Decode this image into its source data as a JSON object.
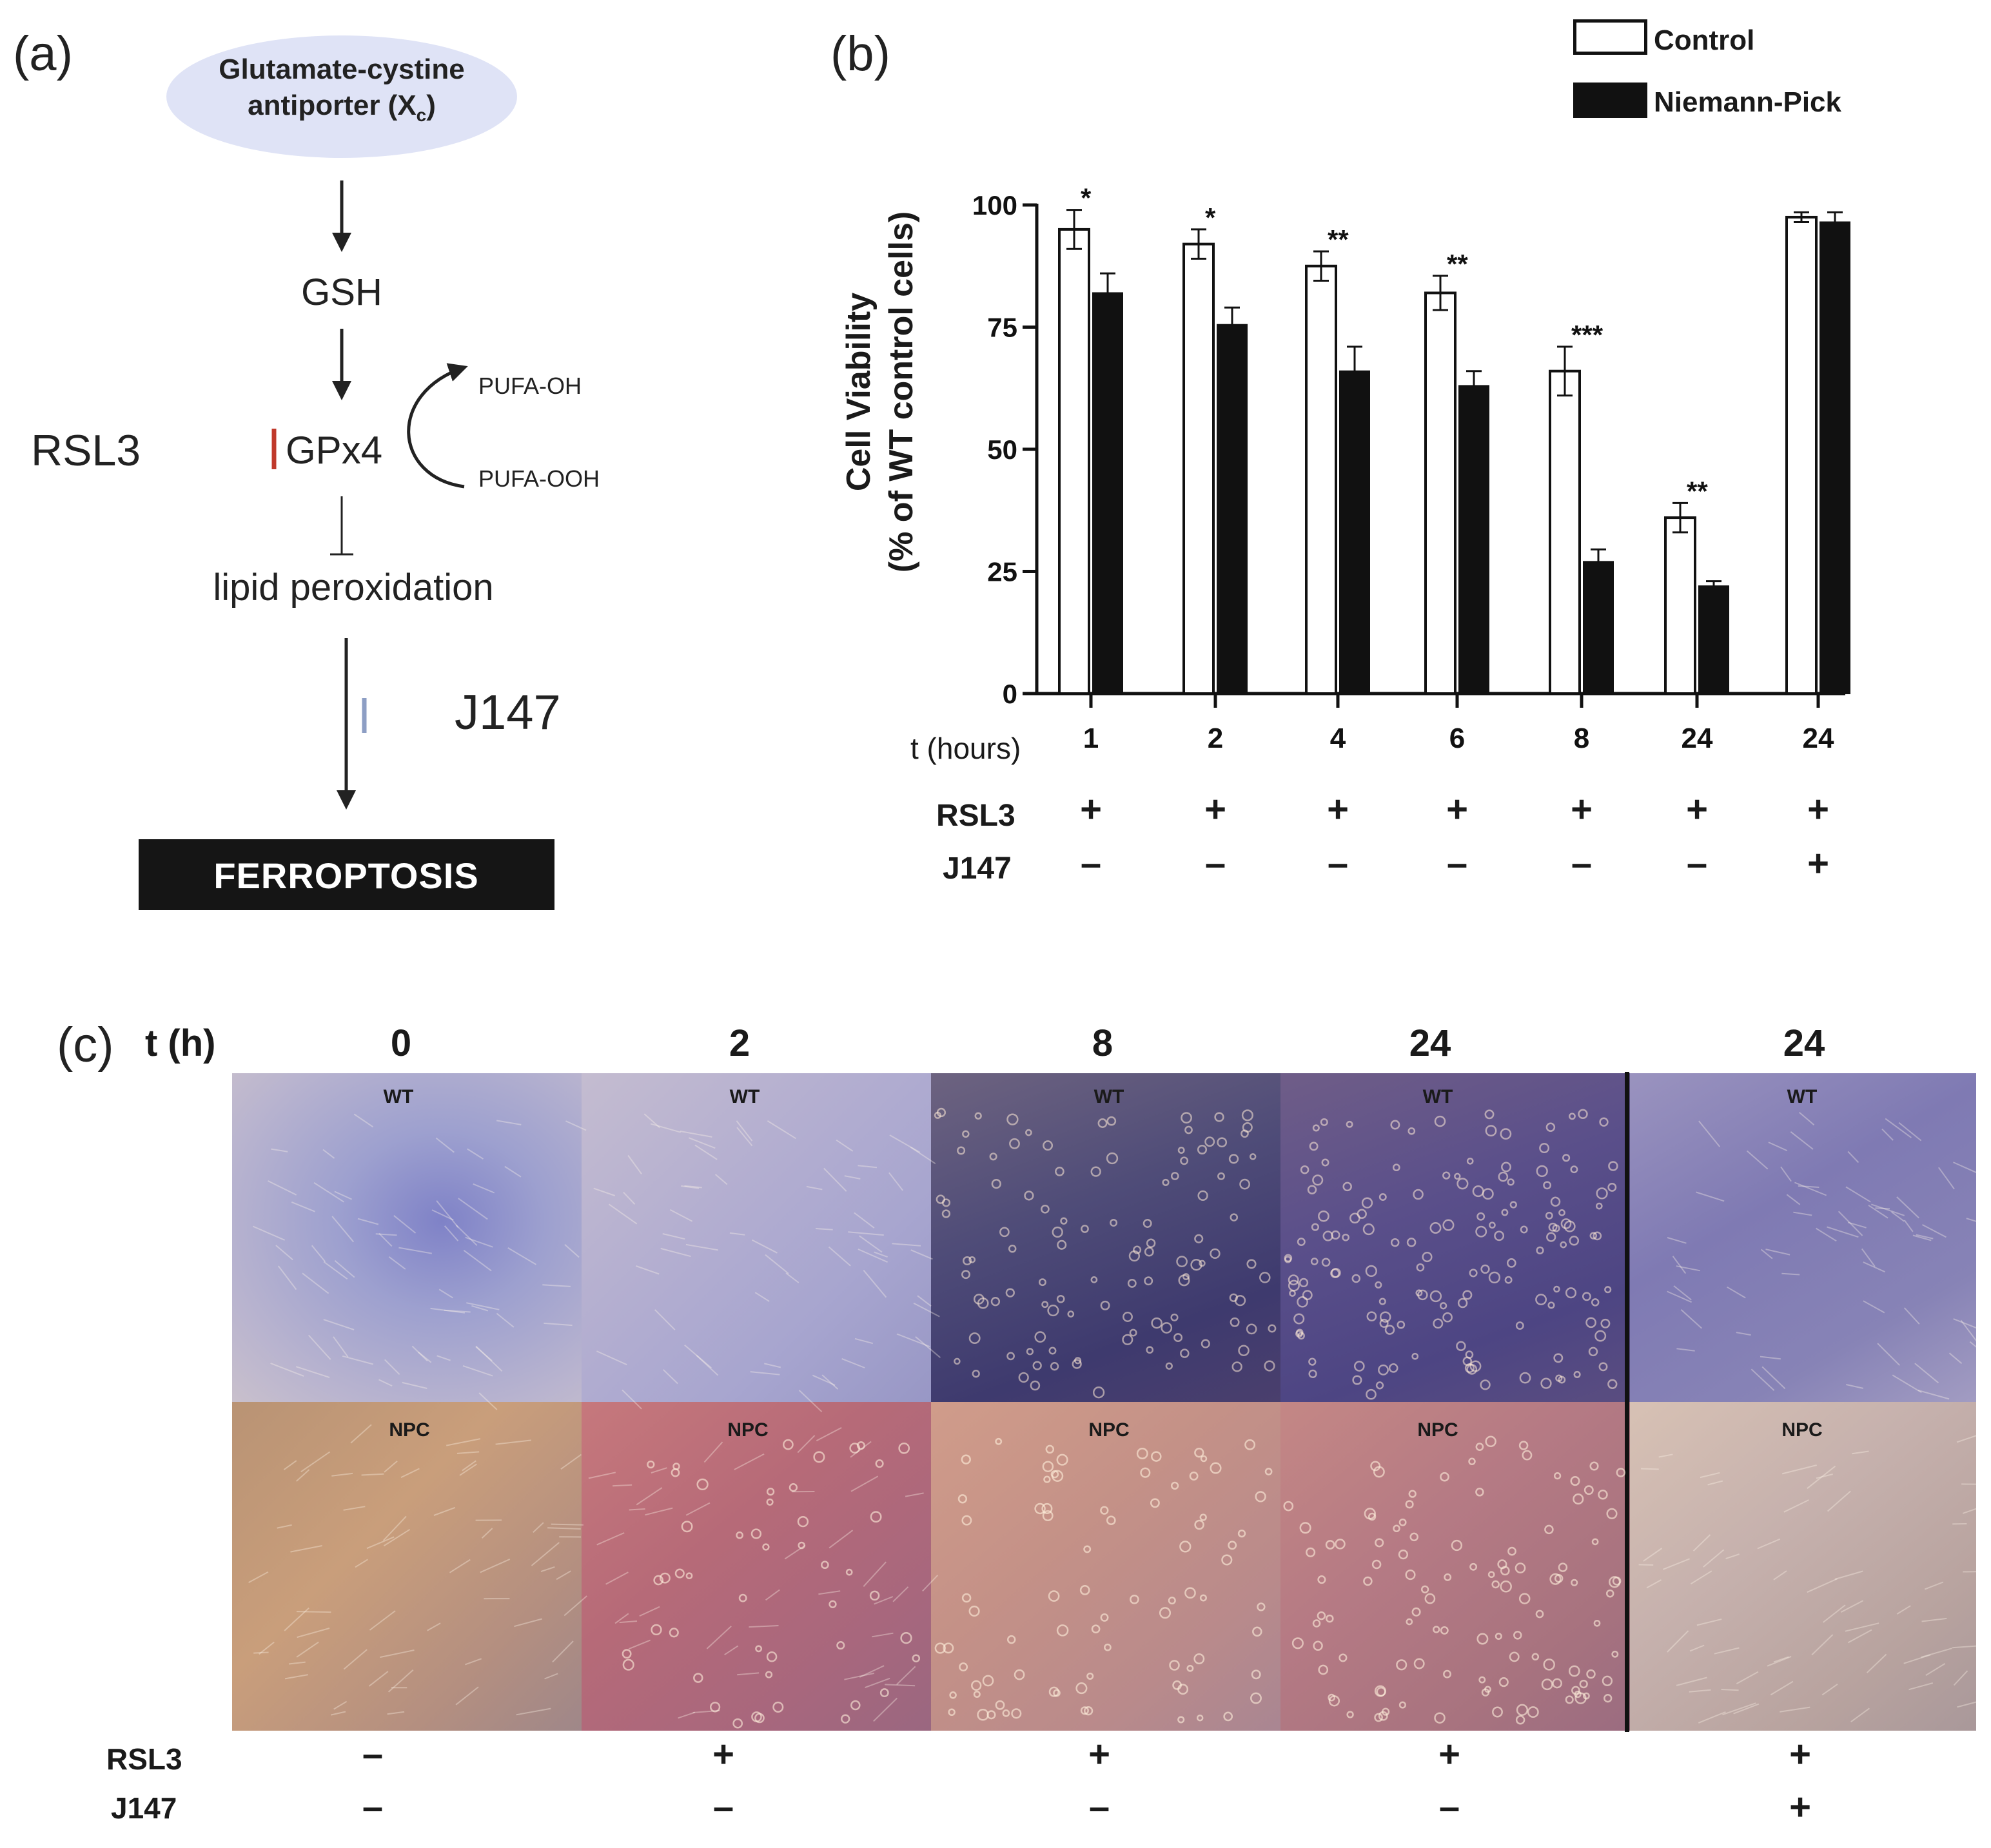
{
  "panel_a": {
    "letter": "(a)",
    "antiporter_line1": "Glutamate-cystine",
    "antiporter_line2": "antiporter (X",
    "antiporter_sub": "c",
    "antiporter_close": ")",
    "gsh": "GSH",
    "rsl3": "RSL3",
    "gpx4": "GPx4",
    "pufa_oh": "PUFA-OH",
    "pufa_ooh": "PUFA-OOH",
    "lipid_peroxidation": "lipid peroxidation",
    "j147": "J147",
    "ferroptosis": "FERROPTOSIS",
    "colors": {
      "ellipse": "#dfe3f6",
      "rsl3_inhibit": "#c0392b",
      "j147_inhibit": "#8d9ec4",
      "box": "#151515"
    }
  },
  "panel_b": {
    "letter": "(b)",
    "legend": [
      "Control",
      "Niemann-Pick"
    ],
    "ylabel_line1": "Cell Viability",
    "ylabel_line2": "(% of WT control cells)",
    "x_row_label": "t (hours)",
    "treatment_labels": [
      "RSL3",
      "J147"
    ],
    "rsl3_signs": [
      "+",
      "+",
      "+",
      "+",
      "+",
      "+",
      "+"
    ],
    "j147_signs": [
      "–",
      "–",
      "–",
      "–",
      "–",
      "–",
      "+"
    ]
  },
  "chart_data": {
    "type": "bar",
    "categories": [
      "1",
      "2",
      "4",
      "6",
      "8",
      "24",
      "24"
    ],
    "series": [
      {
        "name": "Control",
        "values": [
          95,
          92,
          87.5,
          82,
          66,
          36,
          97.5
        ],
        "errors": [
          4,
          3,
          3,
          3.5,
          5,
          3,
          1
        ],
        "color": "#ffffff"
      },
      {
        "name": "Niemann-Pick",
        "values": [
          82,
          75.5,
          66,
          63,
          27,
          22,
          96.5
        ],
        "errors": [
          4,
          3.5,
          5,
          3,
          2.5,
          1,
          2
        ],
        "color": "#111111"
      }
    ],
    "significance": [
      "*",
      "*",
      "**",
      "**",
      "***",
      "**",
      ""
    ],
    "xlabel": "t (hours)",
    "ylabel": "Cell Viability (% of WT control cells)",
    "yticks": [
      0,
      25,
      50,
      75,
      100
    ],
    "ylim": [
      0,
      100
    ],
    "legend_position": "top-right",
    "grid": false
  },
  "panel_c": {
    "letter": "(c)",
    "time_label": "t (h)",
    "times": [
      "0",
      "2",
      "8",
      "24",
      "24"
    ],
    "top_row_label": "WT",
    "bottom_row_label": "NPC",
    "treatment_labels": [
      "RSL3",
      "J147"
    ],
    "rsl3_signs": [
      "–",
      "+",
      "+",
      "+",
      "+"
    ],
    "j147_signs": [
      "–",
      "–",
      "–",
      "–",
      "+"
    ]
  }
}
